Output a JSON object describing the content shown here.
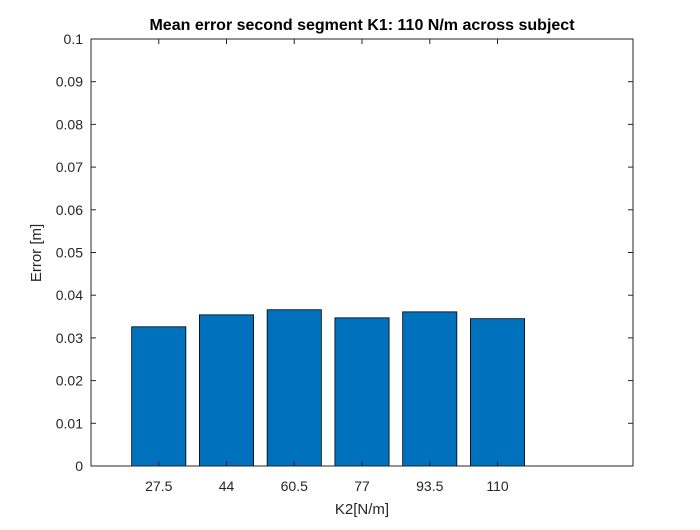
{
  "chart_data": {
    "type": "bar",
    "title": "Mean error second segment K1: 110 N/m across subject",
    "xlabel": "K2[N/m]",
    "ylabel": "Error [m]",
    "categories": [
      "27.5",
      "44",
      "60.5",
      "77",
      "93.5",
      "110"
    ],
    "values": [
      0.0326,
      0.0354,
      0.0366,
      0.0347,
      0.0361,
      0.0345
    ],
    "ylim": [
      0,
      0.1
    ],
    "yticks": [
      "0",
      "0.01",
      "0.02",
      "0.03",
      "0.04",
      "0.05",
      "0.06",
      "0.07",
      "0.08",
      "0.09",
      "0.1"
    ],
    "grid": false,
    "bar_color": "#0072BD",
    "bar_edge_color": "#000000"
  }
}
